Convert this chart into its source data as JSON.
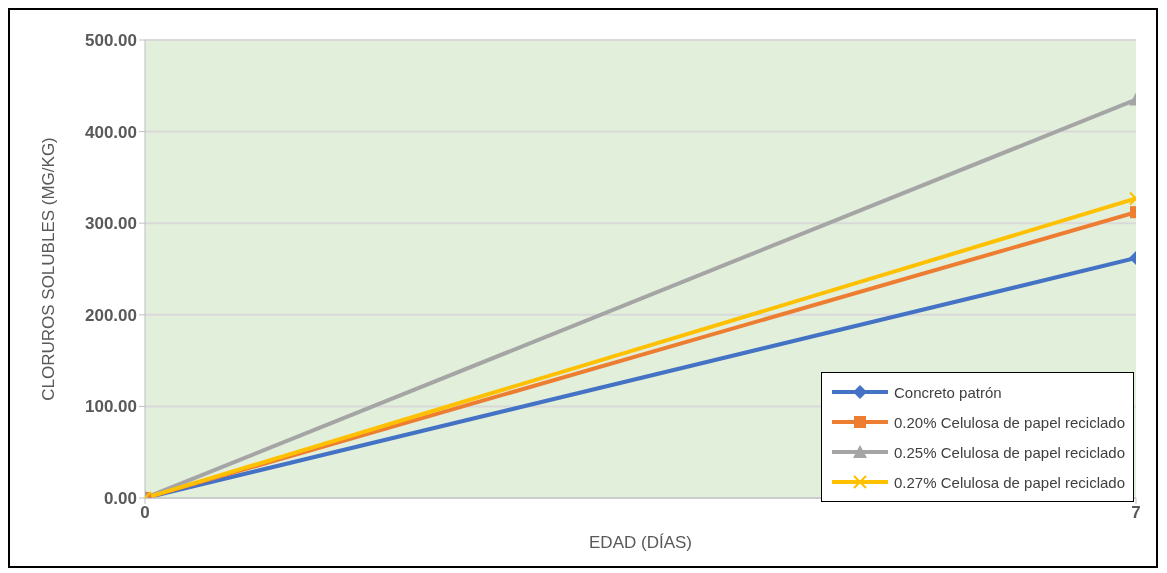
{
  "chart_data": {
    "type": "line",
    "xlabel": "EDAD (DÍAS)",
    "ylabel": "CLORUROS SOLUBLES (MG/KG)",
    "x": [
      0,
      7
    ],
    "xlim": [
      0,
      7
    ],
    "xticks": [
      0,
      7
    ],
    "ylim": [
      0,
      500
    ],
    "yticks": [
      {
        "value": 0,
        "label": "0.00"
      },
      {
        "value": 100,
        "label": "100.00"
      },
      {
        "value": 200,
        "label": "200.00"
      },
      {
        "value": 300,
        "label": "300.00"
      },
      {
        "value": 400,
        "label": "400.00"
      },
      {
        "value": 500,
        "label": "500.00"
      }
    ],
    "grid": "y",
    "legend": "bottom right",
    "series": [
      {
        "name": "Concreto patrón",
        "color": "#4472c4",
        "marker": "diamond",
        "values": [
          0,
          262
        ]
      },
      {
        "name": "0.20% Celulosa de papel reciclado",
        "color": "#ed7d31",
        "marker": "square",
        "values": [
          0,
          312
        ]
      },
      {
        "name": "0.25% Celulosa de papel reciclado",
        "color": "#a5a5a5",
        "marker": "triangle",
        "values": [
          0,
          435
        ]
      },
      {
        "name": "0.27% Celulosa de papel reciclado",
        "color": "#ffc000",
        "marker": "cross",
        "values": [
          0,
          327
        ]
      }
    ]
  }
}
